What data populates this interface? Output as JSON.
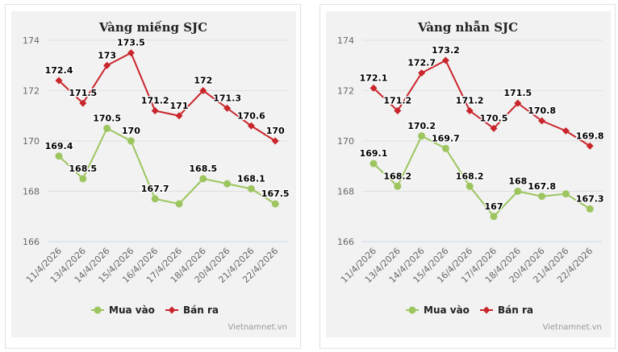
{
  "chart_data": [
    {
      "type": "line",
      "title": "Vàng miếng SJC",
      "categories": [
        "11/4/2026",
        "13/4/2026",
        "14/4/2026",
        "15/4/2026",
        "16/4/2026",
        "17/4/2026",
        "18/4/2026",
        "20/4/2026",
        "21/4/2026",
        "22/4/2026"
      ],
      "ylim": [
        166,
        174
      ],
      "yticks": [
        "166",
        "168",
        "170",
        "172",
        "174"
      ],
      "grid": true,
      "legend_position": "bottom",
      "series": [
        {
          "name": "Mua vào",
          "color": "#9dc55f",
          "marker": "circle",
          "values": [
            169.4,
            168.5,
            170.5,
            170,
            167.7,
            167.5,
            168.5,
            168.3,
            168.1,
            167.5
          ],
          "labels": [
            "169.4",
            "168.5",
            "170.5",
            "170",
            "167.7",
            null,
            "168.5",
            null,
            "168.1",
            "167.5"
          ]
        },
        {
          "name": "Bán ra",
          "color": "#c9252b",
          "marker": "diamond",
          "values": [
            172.4,
            171.5,
            173,
            173.5,
            171.2,
            171,
            172,
            171.3,
            170.6,
            170
          ],
          "labels": [
            "172.4",
            "171.5",
            "173",
            "173.5",
            "171.2",
            "171",
            "172",
            "171.3",
            "170.6",
            "170"
          ]
        }
      ],
      "watermark": "Vietnamnet.vn"
    },
    {
      "type": "line",
      "title": "Vàng nhẫn SJC",
      "categories": [
        "11/4/2026",
        "13/4/2026",
        "14/4/2026",
        "15/4/2026",
        "16/4/2026",
        "17/4/2026",
        "18/4/2026",
        "20/4/2026",
        "21/4/2026",
        "22/4/2026"
      ],
      "ylim": [
        166,
        174
      ],
      "yticks": [
        "166",
        "168",
        "170",
        "172",
        "174"
      ],
      "grid": true,
      "legend_position": "bottom",
      "series": [
        {
          "name": "Mua vào",
          "color": "#9dc55f",
          "marker": "circle",
          "values": [
            169.1,
            168.2,
            170.2,
            169.7,
            168.2,
            167,
            168,
            167.8,
            167.9,
            167.3
          ],
          "labels": [
            "169.1",
            "168.2",
            "170.2",
            "169.7",
            "168.2",
            "167",
            "168",
            "167.8",
            null,
            "167.3"
          ]
        },
        {
          "name": "Bán ra",
          "color": "#c9252b",
          "marker": "diamond",
          "values": [
            172.1,
            171.2,
            172.7,
            173.2,
            171.2,
            170.5,
            171.5,
            170.8,
            170.4,
            169.8
          ],
          "labels": [
            "172.1",
            "171.2",
            "172.7",
            "173.2",
            "171.2",
            "170.5",
            "171.5",
            "170.8",
            null,
            "169.8"
          ]
        }
      ],
      "watermark": "Vietnamnet.vn"
    }
  ]
}
